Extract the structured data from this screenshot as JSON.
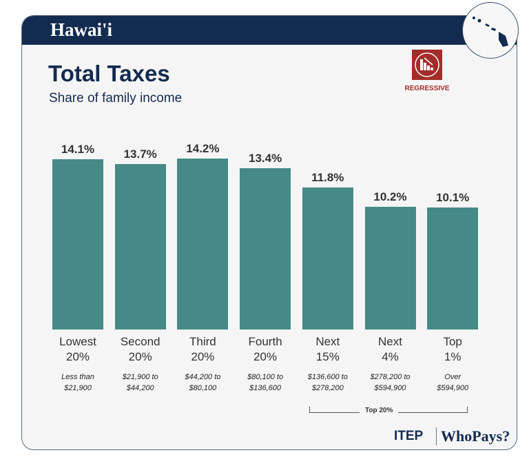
{
  "header": {
    "state": "Hawai'i"
  },
  "title": "Total Taxes",
  "subtitle": "Share of family income",
  "badge": {
    "label": "REGRESSIVE",
    "color": "#a32d2a"
  },
  "chart_data": {
    "type": "bar",
    "title": "Total Taxes",
    "subtitle": "Share of family income",
    "categories": [
      "Lowest 20%",
      "Second 20%",
      "Third 20%",
      "Fourth 20%",
      "Next 15%",
      "Next 4%",
      "Top 1%"
    ],
    "category_lines": [
      [
        "Lowest",
        "20%"
      ],
      [
        "Second",
        "20%"
      ],
      [
        "Third",
        "20%"
      ],
      [
        "Fourth",
        "20%"
      ],
      [
        "Next",
        "15%"
      ],
      [
        "Next",
        "4%"
      ],
      [
        "Top",
        "1%"
      ]
    ],
    "income_ranges": [
      [
        "Less than",
        "$21,900"
      ],
      [
        "$21,900 to",
        "$44,200"
      ],
      [
        "$44,200 to",
        "$80,100"
      ],
      [
        "$80,100 to",
        "$136,600"
      ],
      [
        "$136,600 to",
        "$278,200"
      ],
      [
        "$278,200 to",
        "$594,900"
      ],
      [
        "Over",
        "$594,900"
      ]
    ],
    "values": [
      14.1,
      13.7,
      14.2,
      13.4,
      11.8,
      10.2,
      10.1
    ],
    "value_labels": [
      "14.1%",
      "13.7%",
      "14.2%",
      "13.4%",
      "11.8%",
      "10.2%",
      "10.1%"
    ],
    "bar_color": "#468a87",
    "group_annotation": "Top 20%",
    "grid": false
  },
  "footer": {
    "logo1": "ITEP",
    "logo2": "WhoPays?"
  }
}
